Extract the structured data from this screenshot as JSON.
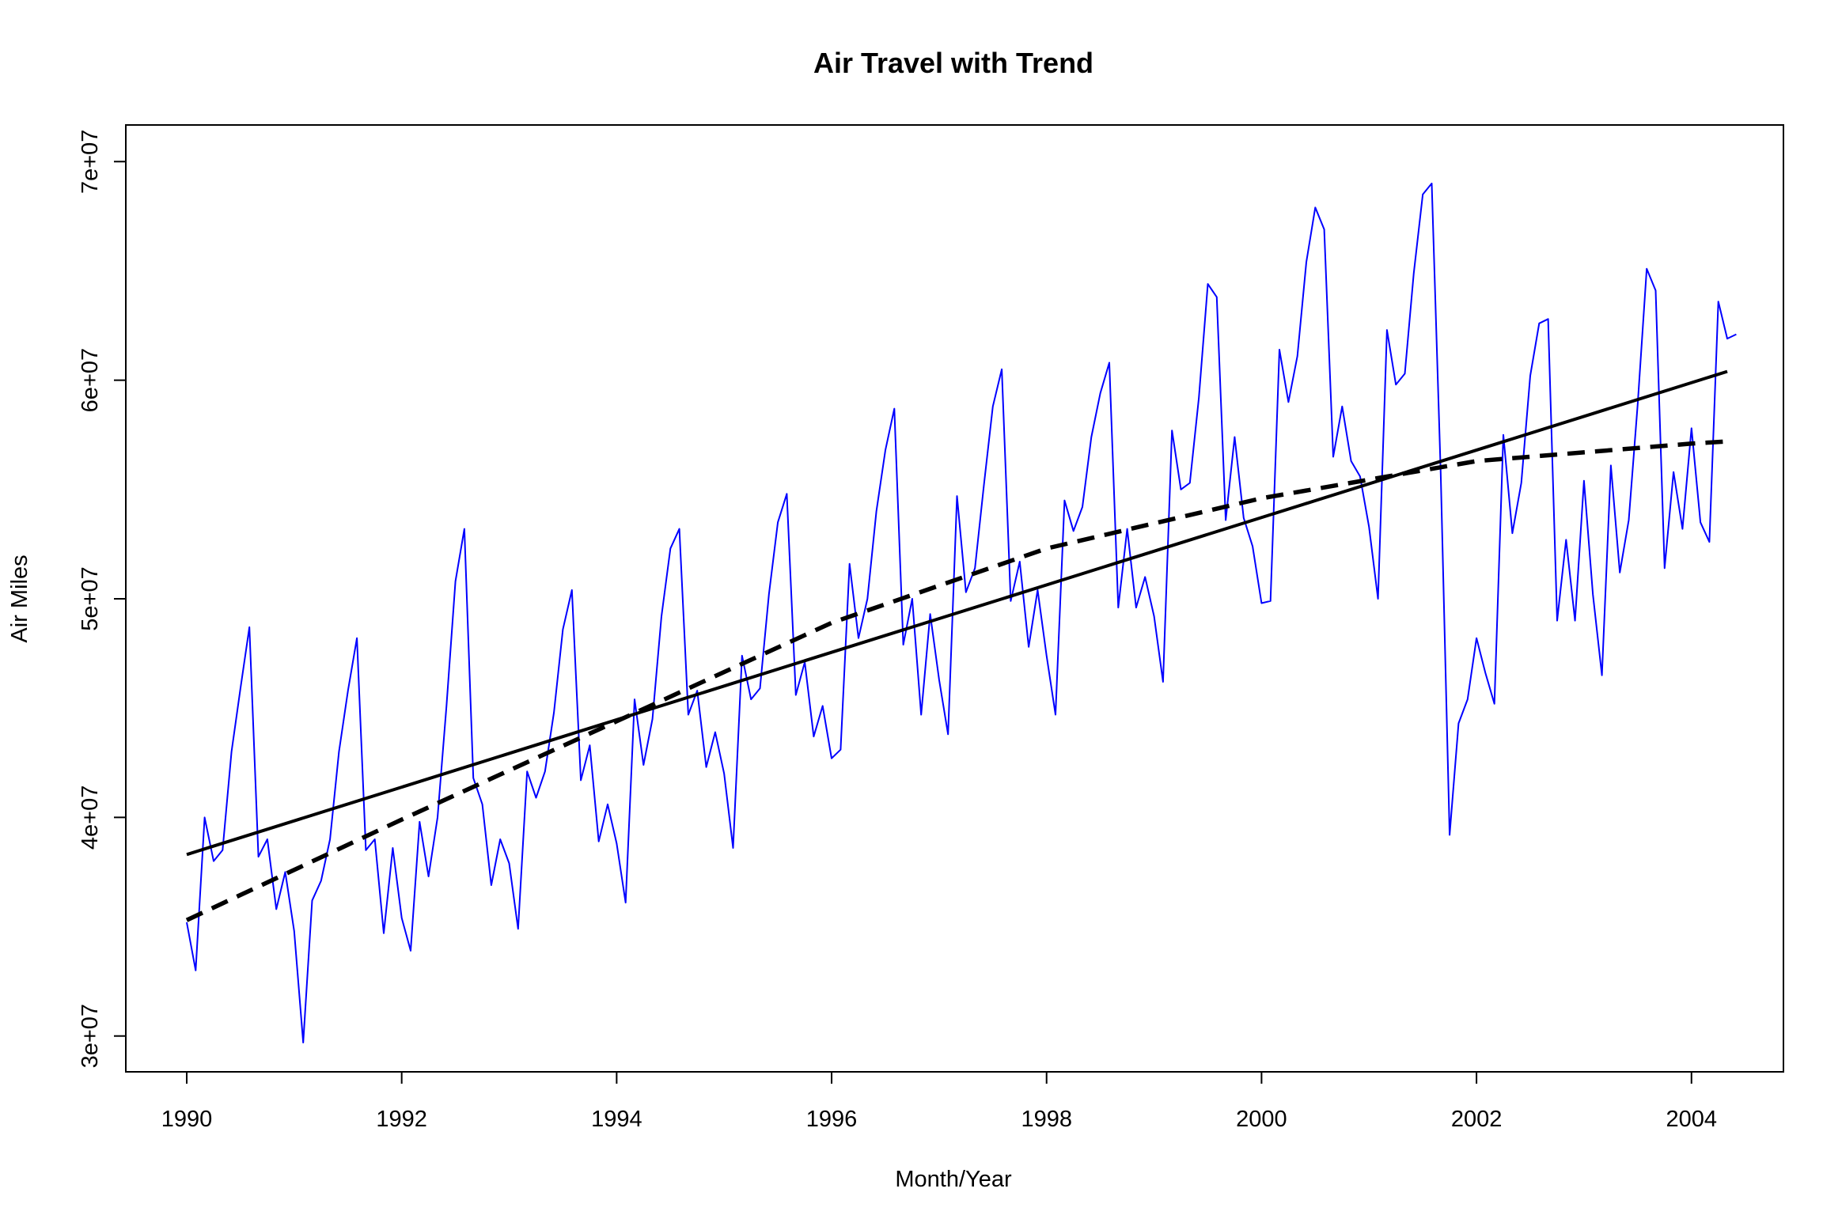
{
  "chart_data": {
    "type": "line",
    "title": "Air Travel with Trend",
    "xlabel": "Month/Year",
    "ylabel": "Air Miles",
    "xlim": [
      1990,
      2004.333
    ],
    "ylim": [
      29700000,
      70300000
    ],
    "x_ticks": [
      1990,
      1992,
      1994,
      1996,
      1998,
      2000,
      2002,
      2004
    ],
    "x_tick_labels": [
      "1990",
      "1992",
      "1994",
      "1996",
      "1998",
      "2000",
      "2002",
      "2004"
    ],
    "y_ticks": [
      30000000,
      40000000,
      50000000,
      60000000,
      70000000
    ],
    "y_tick_labels": [
      "3e+07",
      "4e+07",
      "5e+07",
      "6e+07",
      "7e+07"
    ],
    "grid": false,
    "legend": "none",
    "series": [
      {
        "style": "solid-thin",
        "color": "#0000ff",
        "start_year": 1990,
        "frequency": 12,
        "values": [
          35200000,
          33000000,
          40000000,
          38000000,
          38500000,
          43000000,
          45900000,
          48700000,
          38200000,
          39000000,
          35800000,
          37500000,
          34800000,
          29700000,
          36200000,
          37100000,
          39000000,
          43000000,
          45800000,
          48200000,
          38500000,
          39000000,
          34700000,
          38600000,
          35400000,
          33900000,
          39800000,
          37300000,
          40000000,
          45100000,
          50800000,
          53200000,
          41800000,
          40600000,
          36900000,
          39000000,
          37900000,
          34900000,
          42100000,
          40900000,
          42100000,
          44800000,
          48600000,
          50400000,
          41700000,
          43300000,
          38900000,
          40600000,
          38800000,
          36100000,
          45400000,
          42400000,
          44500000,
          49200000,
          52300000,
          53200000,
          44700000,
          45800000,
          42300000,
          43900000,
          42000000,
          38600000,
          47400000,
          45400000,
          45900000,
          50200000,
          53500000,
          54800000,
          45600000,
          47100000,
          43700000,
          45100000,
          42700000,
          43100000,
          51600000,
          48200000,
          50000000,
          54000000,
          56800000,
          58700000,
          47900000,
          50000000,
          44700000,
          49300000,
          46300000,
          43800000,
          54700000,
          50300000,
          51400000,
          55200000,
          58800000,
          60500000,
          49900000,
          51700000,
          47800000,
          50400000,
          47400000,
          44700000,
          54500000,
          53100000,
          54200000,
          57400000,
          59400000,
          60800000,
          49600000,
          53200000,
          49600000,
          51000000,
          49200000,
          46200000,
          57700000,
          55000000,
          55300000,
          59200000,
          64400000,
          63800000,
          53600000,
          57400000,
          53700000,
          52400000,
          49800000,
          49900000,
          61400000,
          59000000,
          61100000,
          65400000,
          67900000,
          66900000,
          56500000,
          58800000,
          56300000,
          55600000,
          53300000,
          50000000,
          62300000,
          59800000,
          60300000,
          64900000,
          68500000,
          69000000,
          55800000,
          39200000,
          44300000,
          45400000,
          48200000,
          46600000,
          45200000,
          57500000,
          53000000,
          55300000,
          60200000,
          62600000,
          62800000,
          49000000,
          52700000,
          49000000,
          55400000,
          50200000,
          46500000,
          56100000,
          51200000,
          53600000,
          58900000,
          65100000,
          64100000,
          51400000,
          55800000,
          53200000,
          57800000,
          53500000,
          52600000,
          63600000,
          61900000,
          62100000
        ]
      },
      {
        "style": "solid-thick",
        "color": "#000000",
        "x": [
          1990,
          2004.333
        ],
        "values": [
          38300000,
          60400000
        ]
      },
      {
        "style": "dashed-thick",
        "color": "#000000",
        "x": [
          1990,
          1992,
          1994,
          1996,
          1998,
          2000,
          2002,
          2004,
          2004.333
        ],
        "values": [
          35300000,
          39900000,
          44400000,
          48900000,
          52300000,
          54600000,
          56300000,
          57100000,
          57200000
        ]
      }
    ]
  }
}
